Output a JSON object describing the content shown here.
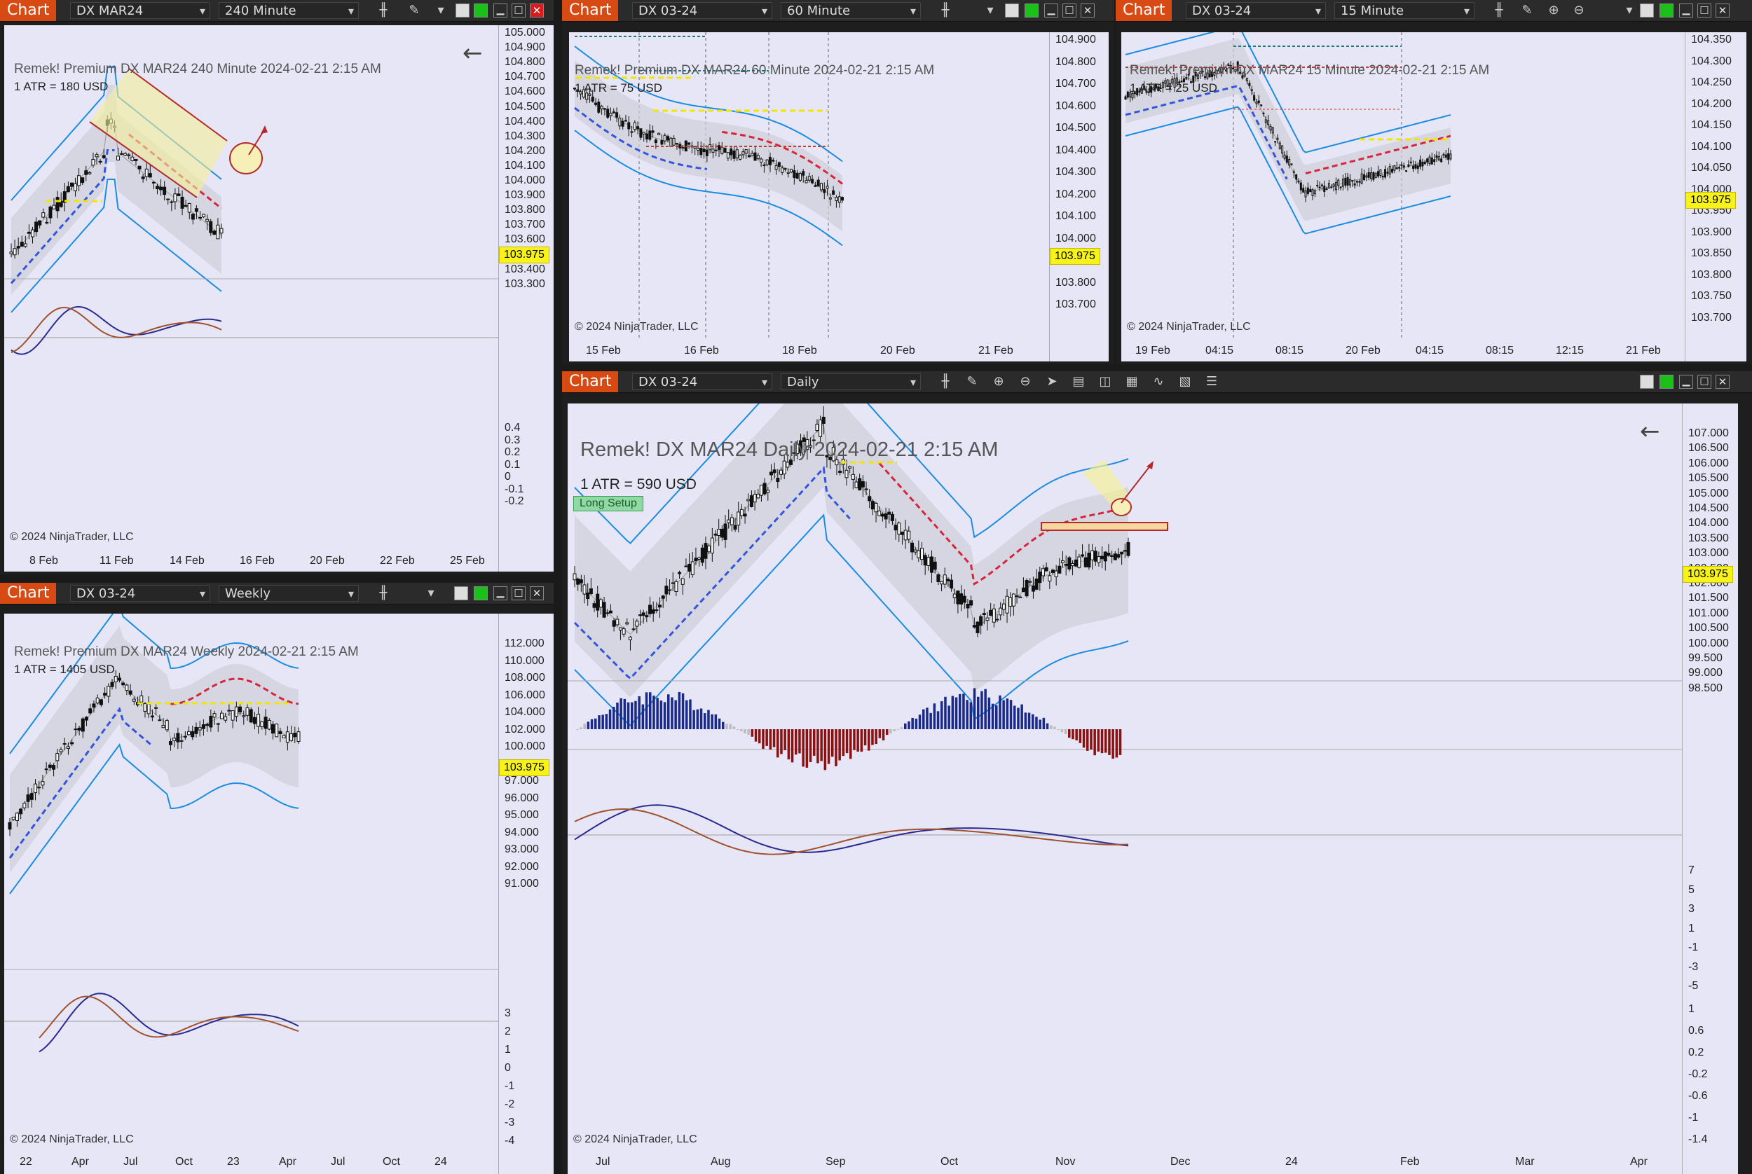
{
  "windows": [
    {
      "id": "w240",
      "tab": "Chart",
      "instrument": "DX MAR24",
      "interval": "240 Minute",
      "title": "Remek!  Premium  DX MAR24  240 Minute  2024-02-21 2:15 AM",
      "atr": "1 ATR = 180 USD",
      "copyright": "© 2024 NinjaTrader, LLC",
      "last_price": "103.975",
      "price_ticks": [
        "105.000",
        "104.900",
        "104.800",
        "104.700",
        "104.600",
        "104.500",
        "104.400",
        "104.300",
        "104.200",
        "104.100",
        "104.000",
        "103.900",
        "103.800",
        "103.700",
        "103.600",
        "103.500",
        "103.400",
        "103.300"
      ],
      "osc_ticks": [
        "0.4",
        "0.3",
        "0.2",
        "0.1",
        "0",
        "-0.1",
        "-0.2"
      ],
      "x_ticks": [
        "8 Feb",
        "11 Feb",
        "14 Feb",
        "16 Feb",
        "20 Feb",
        "22 Feb",
        "25 Feb"
      ]
    },
    {
      "id": "w60",
      "tab": "Chart",
      "instrument": "DX 03-24",
      "interval": "60 Minute",
      "title": "Remek!  Premium  DX MAR24  60 Minute  2024-02-21 2:15 AM",
      "atr": "1 ATR = 75 USD",
      "copyright": "© 2024 NinjaTrader, LLC",
      "last_price": "103.975",
      "price_ticks": [
        "104.900",
        "104.800",
        "104.700",
        "104.600",
        "104.500",
        "104.400",
        "104.300",
        "104.200",
        "104.100",
        "104.000",
        "103.900",
        "103.800",
        "103.700"
      ],
      "x_ticks": [
        "15 Feb",
        "16 Feb",
        "18 Feb",
        "20 Feb",
        "21 Feb"
      ]
    },
    {
      "id": "w15",
      "tab": "Chart",
      "instrument": "DX 03-24",
      "interval": "15 Minute",
      "title": "Remek!  Premium  DX MAR24  15 Minute  2024-02-21 2:15 AM",
      "atr": "1 ATR = 25 USD",
      "copyright": "© 2024 NinjaTrader, LLC",
      "last_price": "103.975",
      "price_ticks": [
        "104.350",
        "104.300",
        "104.250",
        "104.200",
        "104.150",
        "104.100",
        "104.050",
        "104.000",
        "103.950",
        "103.900",
        "103.850",
        "103.800",
        "103.750",
        "103.700"
      ],
      "x_ticks": [
        "19 Feb",
        "04:15",
        "08:15",
        "20 Feb",
        "04:15",
        "08:15",
        "12:15",
        "21 Feb"
      ]
    },
    {
      "id": "wweekly",
      "tab": "Chart",
      "instrument": "DX 03-24",
      "interval": "Weekly",
      "title": "Remek!  Premium  DX MAR24  Weekly  2024-02-21 2:15 AM",
      "atr": "1 ATR = 1405 USD",
      "copyright": "© 2024 NinjaTrader, LLC",
      "last_price": "103.975",
      "price_ticks": [
        "112.000",
        "110.000",
        "108.000",
        "106.000",
        "104.000",
        "102.000",
        "100.000",
        "98.000",
        "97.000",
        "96.000",
        "95.000",
        "94.000",
        "93.000",
        "92.000",
        "91.000"
      ],
      "osc_ticks": [
        "3",
        "2",
        "1",
        "0",
        "-1",
        "-2",
        "-3",
        "-4"
      ],
      "x_ticks": [
        "22",
        "Apr",
        "Jul",
        "Oct",
        "23",
        "Apr",
        "Jul",
        "Oct",
        "24"
      ]
    },
    {
      "id": "wdaily",
      "tab": "Chart",
      "instrument": "DX 03-24",
      "interval": "Daily",
      "title": "Remek!  DX MAR24  Daily  2024-02-21 2:15 AM",
      "atr": "1 ATR = 590 USD",
      "setup": "Long Setup",
      "copyright": "© 2024 NinjaTrader, LLC",
      "last_price": "103.975",
      "price_ticks": [
        "107.000",
        "106.500",
        "106.000",
        "105.500",
        "105.000",
        "104.500",
        "104.000",
        "103.500",
        "103.000",
        "102.500",
        "102.000",
        "101.500",
        "101.000",
        "100.500",
        "100.000",
        "99.500",
        "99.000",
        "98.500"
      ],
      "hist_ticks": [
        "7",
        "5",
        "3",
        "1",
        "-1",
        "-3",
        "-5"
      ],
      "osc_ticks": [
        "1",
        "0.6",
        "0.2",
        "-0.2",
        "-0.6",
        "-1",
        "-1.4"
      ],
      "x_ticks": [
        "Jul",
        "Aug",
        "Sep",
        "Oct",
        "Nov",
        "Dec",
        "24",
        "Feb",
        "Mar",
        "Apr"
      ]
    }
  ],
  "icons": [
    "bar-type-icon",
    "pencil-icon",
    "zoom-in-icon",
    "zoom-out-icon",
    "pointer-icon",
    "data-box-icon",
    "template-icon",
    "chart-trader-icon",
    "strategy-icon",
    "properties-icon",
    "list-icon"
  ]
}
